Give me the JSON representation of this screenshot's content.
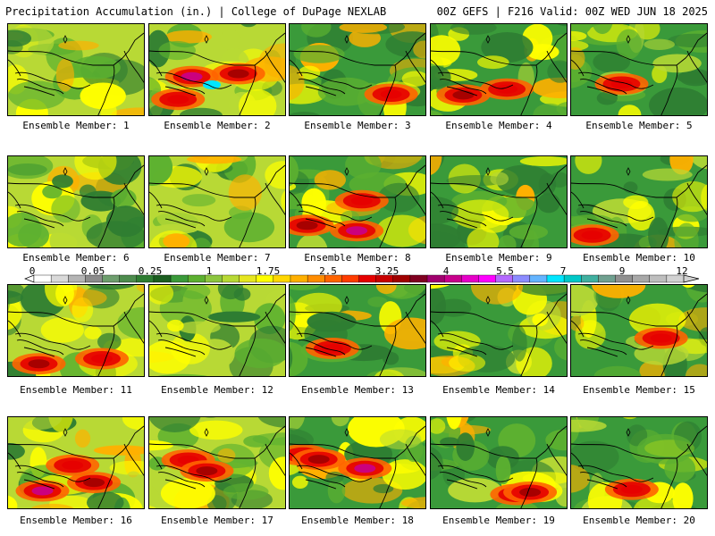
{
  "header": {
    "left": "Precipitation Accumulation (in.) | College of DuPage NEXLAB",
    "right": "00Z GEFS | F216 Valid: 00Z WED JUN 18 2025"
  },
  "members": [
    {
      "caption": "Ensemble Member: 1",
      "heavy": 0
    },
    {
      "caption": "Ensemble Member: 2",
      "heavy": 3
    },
    {
      "caption": "Ensemble Member: 3",
      "heavy": 1
    },
    {
      "caption": "Ensemble Member: 4",
      "heavy": 2
    },
    {
      "caption": "Ensemble Member: 5",
      "heavy": 1
    },
    {
      "caption": "Ensemble Member: 6",
      "heavy": 0
    },
    {
      "caption": "Ensemble Member: 7",
      "heavy": 0
    },
    {
      "caption": "Ensemble Member: 8",
      "heavy": 3
    },
    {
      "caption": "Ensemble Member: 9",
      "heavy": 0
    },
    {
      "caption": "Ensemble Member: 10",
      "heavy": 1
    },
    {
      "caption": "Ensemble Member: 11",
      "heavy": 2
    },
    {
      "caption": "Ensemble Member: 12",
      "heavy": 0
    },
    {
      "caption": "Ensemble Member: 13",
      "heavy": 1
    },
    {
      "caption": "Ensemble Member: 14",
      "heavy": 0
    },
    {
      "caption": "Ensemble Member: 15",
      "heavy": 1
    },
    {
      "caption": "Ensemble Member: 16",
      "heavy": 3
    },
    {
      "caption": "Ensemble Member: 17",
      "heavy": 2
    },
    {
      "caption": "Ensemble Member: 18",
      "heavy": 3
    },
    {
      "caption": "Ensemble Member: 19",
      "heavy": 2
    },
    {
      "caption": "Ensemble Member: 20",
      "heavy": 1
    }
  ],
  "colorbar": {
    "labels": [
      "0",
      "0.05",
      "0.25",
      "1",
      "1.75",
      "2.5",
      "3.25",
      "4",
      "5.5",
      "7",
      "9",
      "12"
    ],
    "colors": [
      "#ffffff",
      "#d9d9d9",
      "#b4b4b4",
      "#8c8c8c",
      "#6e9e6e",
      "#4d8c4d",
      "#2e7d32",
      "#1b5e20",
      "#3a9a3a",
      "#5cb030",
      "#8cc63f",
      "#b8d935",
      "#e6e620",
      "#ffff00",
      "#ffd700",
      "#ffb000",
      "#ff8c00",
      "#ff6400",
      "#ff3c00",
      "#e60000",
      "#c80000",
      "#a00000",
      "#800020",
      "#a0006e",
      "#c8008c",
      "#e600c8",
      "#ff00ff",
      "#b469ff",
      "#8c8cff",
      "#64b4ff",
      "#00e6ff",
      "#00c8c8",
      "#40b0a0",
      "#70a090",
      "#909090",
      "#a8a8a8",
      "#bebebe",
      "#d2d2d2"
    ]
  },
  "field_colors": {
    "dark_green": "#2e7d32",
    "mid_green": "#3a9a3a",
    "light_green": "#5cb030",
    "yellow_green": "#b8d935",
    "yellow": "#ffff00",
    "orange": "#ffb000",
    "dark_orange": "#ff6400",
    "red": "#e60000",
    "dark_red": "#a00000",
    "magenta": "#c8008c",
    "cyan": "#00e6ff"
  }
}
